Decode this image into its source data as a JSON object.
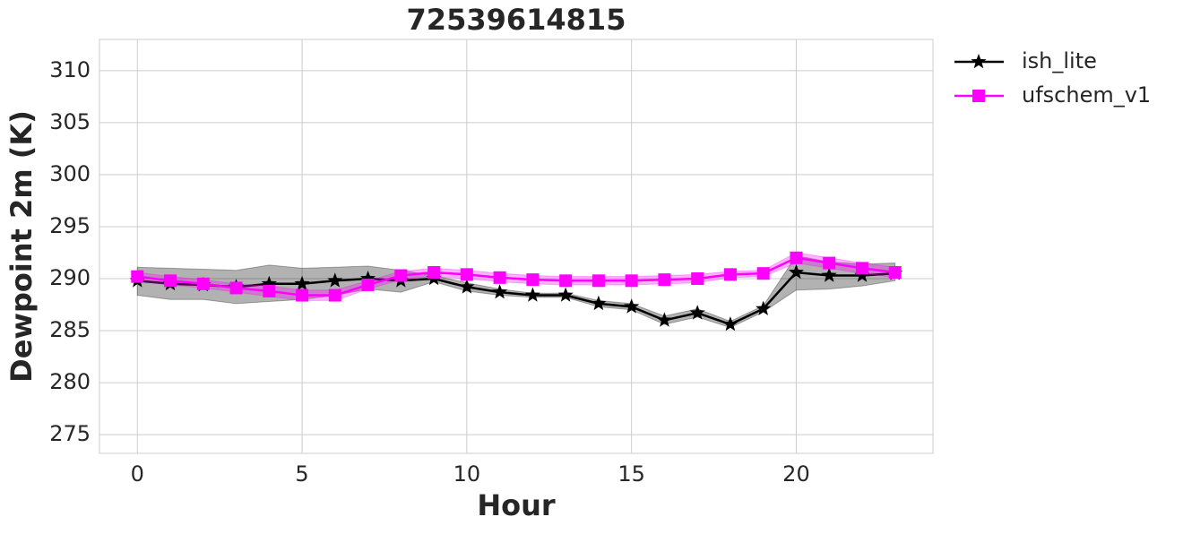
{
  "chart_data": {
    "type": "line",
    "title": "72539614815",
    "x_label": "Hour",
    "y_label": "Dewpoint 2m (K)",
    "x": [
      0,
      1,
      2,
      3,
      4,
      5,
      6,
      7,
      8,
      9,
      10,
      11,
      12,
      13,
      14,
      15,
      16,
      17,
      18,
      19,
      20,
      21,
      22,
      23
    ],
    "series": [
      {
        "name": "ish_lite",
        "color": "#000000",
        "marker": "star",
        "values": [
          289.8,
          289.5,
          289.4,
          289.2,
          289.5,
          289.5,
          289.8,
          290.0,
          289.8,
          290.0,
          289.2,
          288.7,
          288.4,
          288.4,
          287.6,
          287.3,
          286.0,
          286.7,
          285.6,
          287.1,
          290.6,
          290.3,
          290.3,
          290.5
        ],
        "lower": [
          288.4,
          288.0,
          288.0,
          287.6,
          287.8,
          288.0,
          288.4,
          289.0,
          288.7,
          289.7,
          288.8,
          288.4,
          288.2,
          288.2,
          287.3,
          287.0,
          285.6,
          286.3,
          285.3,
          286.8,
          288.9,
          289.0,
          289.3,
          289.8
        ],
        "upper": [
          291.1,
          291.0,
          290.9,
          290.8,
          291.3,
          291.0,
          291.1,
          291.2,
          290.8,
          290.3,
          289.6,
          289.0,
          288.6,
          288.6,
          287.9,
          287.6,
          286.4,
          287.1,
          285.9,
          287.4,
          292.2,
          291.6,
          291.4,
          291.5
        ]
      },
      {
        "name": "ufschem_v1",
        "color": "#ff00ff",
        "marker": "square",
        "values": [
          290.2,
          289.8,
          289.5,
          289.1,
          288.8,
          288.4,
          288.4,
          289.4,
          290.3,
          290.6,
          290.4,
          290.1,
          289.9,
          289.8,
          289.8,
          289.8,
          289.9,
          290.0,
          290.4,
          290.5,
          292.0,
          291.5,
          291.0,
          290.6
        ],
        "lower": [
          289.8,
          289.4,
          289.1,
          288.7,
          288.3,
          287.9,
          287.9,
          289.0,
          289.9,
          290.2,
          290.0,
          289.7,
          289.5,
          289.4,
          289.4,
          289.4,
          289.5,
          289.6,
          290.1,
          290.2,
          291.5,
          291.0,
          290.5,
          290.1
        ],
        "upper": [
          290.6,
          290.2,
          289.9,
          289.5,
          289.3,
          288.9,
          288.9,
          289.8,
          290.7,
          291.0,
          290.8,
          290.5,
          290.3,
          290.2,
          290.2,
          290.2,
          290.3,
          290.4,
          290.7,
          290.8,
          292.5,
          292.0,
          291.5,
          291.1
        ]
      }
    ],
    "xlim": [
      -1.15,
      24.15
    ],
    "xticks": [
      0,
      5,
      10,
      15,
      20
    ],
    "ylim": [
      273.2,
      313.0
    ],
    "yticks": [
      275,
      280,
      285,
      290,
      295,
      300,
      305,
      310
    ],
    "grid": true,
    "legend": "outside right"
  }
}
